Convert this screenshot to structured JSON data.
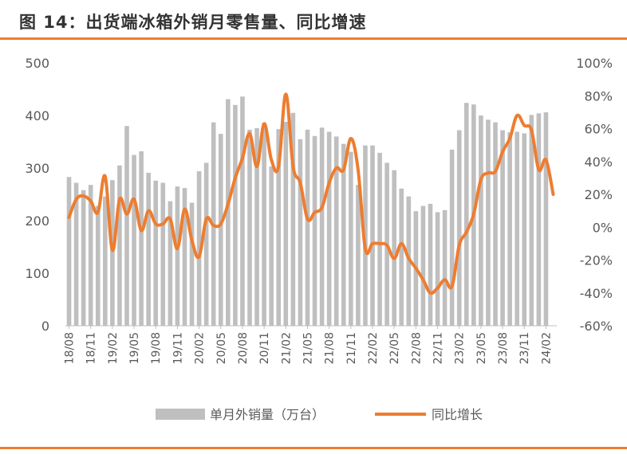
{
  "title": "图 14：出货端冰箱外销月零售量、同比增速",
  "colors": {
    "bar": "#BFBFBF",
    "line": "#ED7D31",
    "rule": "#ED7D31",
    "text": "#595959"
  },
  "chart_data": {
    "type": "bar+line",
    "categories": [
      "18/08",
      "18/09",
      "18/10",
      "18/11",
      "18/12",
      "19/01",
      "19/02",
      "19/03",
      "19/04",
      "19/05",
      "19/06",
      "19/07",
      "19/08",
      "19/09",
      "19/10",
      "19/11",
      "19/12",
      "20/01",
      "20/02",
      "20/03",
      "20/04",
      "20/05",
      "20/06",
      "20/07",
      "20/08",
      "20/09",
      "20/10",
      "20/11",
      "20/12",
      "21/01",
      "21/02",
      "21/03",
      "21/04",
      "21/05",
      "21/06",
      "21/07",
      "21/08",
      "21/09",
      "21/10",
      "21/11",
      "21/12",
      "22/01",
      "22/02",
      "22/03",
      "22/04",
      "22/05",
      "22/06",
      "22/07",
      "22/08",
      "22/09",
      "22/10",
      "22/11",
      "22/12",
      "23/01",
      "23/02",
      "23/03",
      "23/04",
      "23/05",
      "23/06",
      "23/07",
      "23/08",
      "23/09",
      "23/10",
      "23/11",
      "23/12",
      "24/01",
      "24/02",
      "24/03"
    ],
    "x_tick_labels": [
      "18/08",
      "18/11",
      "19/02",
      "19/05",
      "19/08",
      "19/11",
      "20/02",
      "20/05",
      "20/08",
      "20/11",
      "21/02",
      "21/05",
      "21/08",
      "21/11",
      "22/02",
      "22/05",
      "22/08",
      "22/11",
      "23/02",
      "23/05",
      "23/08",
      "23/11",
      "24/02"
    ],
    "series": [
      {
        "name": "单月外销量（万台）",
        "type": "bar",
        "axis": "left",
        "values": [
          283,
          272,
          258,
          268,
          228,
          246,
          277,
          305,
          380,
          325,
          332,
          291,
          276,
          272,
          237,
          265,
          262,
          234,
          294,
          310,
          387,
          365,
          431,
          420,
          436,
          373,
          376,
          386,
          303,
          374,
          388,
          405,
          355,
          373,
          361,
          377,
          369,
          360,
          346,
          331,
          268,
          343,
          343,
          329,
          310,
          296,
          261,
          246,
          218,
          228,
          232,
          216,
          220,
          335,
          372,
          424,
          421,
          400,
          392,
          387,
          372,
          368,
          369,
          366,
          401,
          404,
          406,
          0
        ]
      },
      {
        "name": "同比增长",
        "type": "line",
        "axis": "right",
        "values": [
          6,
          17,
          19,
          16,
          9,
          31,
          -14,
          17,
          8,
          17,
          -2,
          10,
          2,
          2,
          5,
          -13,
          11,
          -8,
          -18,
          5,
          1,
          2,
          14,
          30,
          42,
          57,
          37,
          63,
          41,
          37,
          81,
          37,
          27,
          5,
          9,
          12,
          27,
          36,
          35,
          54,
          35,
          -13,
          -10,
          -10,
          -11,
          -19,
          -10,
          -19,
          -25,
          -32,
          -40,
          -37,
          -32,
          -36,
          -11,
          -3,
          8,
          29,
          33,
          34,
          46,
          54,
          68,
          62,
          59,
          35,
          41,
          20
        ]
      }
    ],
    "y_left": {
      "min": 0,
      "max": 500,
      "ticks": [
        0,
        100,
        200,
        300,
        400,
        500
      ],
      "tick_labels": [
        "0",
        "100",
        "200",
        "300",
        "400",
        "500"
      ]
    },
    "y_right": {
      "min": -60,
      "max": 100,
      "ticks": [
        -60,
        -40,
        -20,
        0,
        20,
        40,
        60,
        80,
        100
      ],
      "tick_labels": [
        "-60%",
        "-40%",
        "-20%",
        "0%",
        "20%",
        "40%",
        "60%",
        "80%",
        "100%"
      ]
    },
    "legend": {
      "position": "bottom",
      "entries": [
        "单月外销量（万台）",
        "同比增长"
      ]
    },
    "grid": false
  }
}
